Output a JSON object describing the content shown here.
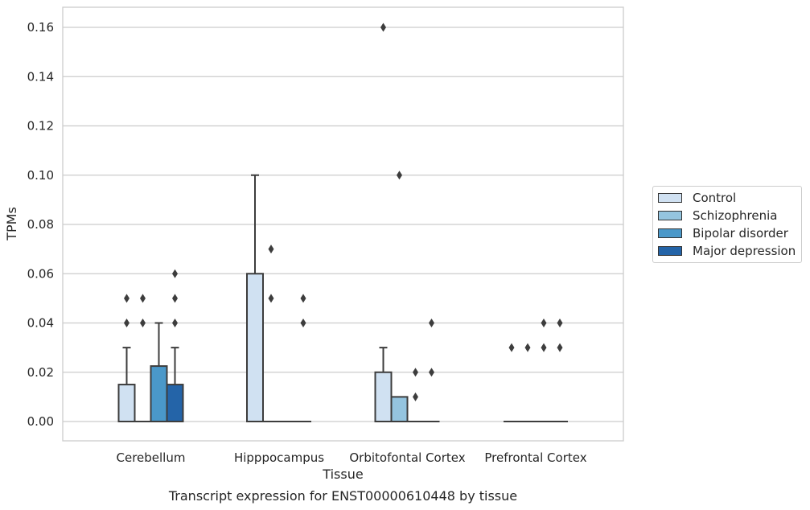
{
  "chart_data": {
    "type": "box",
    "title": "Transcript expression for ENST00000610448 by tissue",
    "xlabel": "Tissue",
    "ylabel": "TPMs",
    "ylim": [
      -0.008,
      0.168
    ],
    "yticks": [
      "0.00",
      "0.02",
      "0.04",
      "0.06",
      "0.08",
      "0.10",
      "0.12",
      "0.14",
      "0.16"
    ],
    "categories": [
      "Cerebellum",
      "Hipppocampus",
      "Orbitofontal Cortex",
      "Prefrontal Cortex"
    ],
    "grid": true,
    "legend_position": "right",
    "series": [
      {
        "name": "Control",
        "color": "#d0e1f2",
        "boxes": [
          {
            "q1": 0,
            "median": 0,
            "q3": 0.015,
            "whisker_low": 0,
            "whisker_high": 0.03,
            "outliers": [
              0.04,
              0.05
            ]
          },
          {
            "q1": 0,
            "median": 0,
            "q3": 0.06,
            "whisker_low": 0,
            "whisker_high": 0.1,
            "outliers": []
          },
          {
            "q1": 0,
            "median": 0,
            "q3": 0.02,
            "whisker_low": 0,
            "whisker_high": 0.03,
            "outliers": [
              0.16
            ]
          },
          {
            "q1": 0,
            "median": 0,
            "q3": 0,
            "whisker_low": 0,
            "whisker_high": 0,
            "outliers": [
              0.03
            ]
          }
        ]
      },
      {
        "name": "Schizophrenia",
        "color": "#94c4df",
        "boxes": [
          {
            "q1": 0,
            "median": 0,
            "q3": 0,
            "whisker_low": 0,
            "whisker_high": 0,
            "outliers": [
              0.04,
              0.05
            ]
          },
          {
            "q1": 0,
            "median": 0,
            "q3": 0,
            "whisker_low": 0,
            "whisker_high": 0,
            "outliers": [
              0.05,
              0.07
            ]
          },
          {
            "q1": 0,
            "median": 0,
            "q3": 0.01,
            "whisker_low": 0,
            "whisker_high": 0.01,
            "outliers": [
              0.1
            ]
          },
          {
            "q1": 0,
            "median": 0,
            "q3": 0,
            "whisker_low": 0,
            "whisker_high": 0,
            "outliers": [
              0.03
            ]
          }
        ]
      },
      {
        "name": "Bipolar disorder",
        "color": "#4a98c9",
        "boxes": [
          {
            "q1": 0,
            "median": 0,
            "q3": 0.0225,
            "whisker_low": 0,
            "whisker_high": 0.04,
            "outliers": []
          },
          {
            "q1": 0,
            "median": 0,
            "q3": 0,
            "whisker_low": 0,
            "whisker_high": 0,
            "outliers": []
          },
          {
            "q1": 0,
            "median": 0,
            "q3": 0,
            "whisker_low": 0,
            "whisker_high": 0,
            "outliers": [
              0.01,
              0.02
            ]
          },
          {
            "q1": 0,
            "median": 0,
            "q3": 0,
            "whisker_low": 0,
            "whisker_high": 0,
            "outliers": [
              0.03,
              0.04
            ]
          }
        ]
      },
      {
        "name": "Major depression",
        "color": "#2464a8",
        "boxes": [
          {
            "q1": 0,
            "median": 0,
            "q3": 0.015,
            "whisker_low": 0,
            "whisker_high": 0.03,
            "outliers": [
              0.04,
              0.05,
              0.06
            ]
          },
          {
            "q1": 0,
            "median": 0,
            "q3": 0,
            "whisker_low": 0,
            "whisker_high": 0,
            "outliers": [
              0.04,
              0.05
            ]
          },
          {
            "q1": 0,
            "median": 0,
            "q3": 0,
            "whisker_low": 0,
            "whisker_high": 0,
            "outliers": [
              0.02,
              0.04
            ]
          },
          {
            "q1": 0,
            "median": 0,
            "q3": 0,
            "whisker_low": 0,
            "whisker_high": 0,
            "outliers": [
              0.03,
              0.04
            ]
          }
        ]
      }
    ]
  },
  "legend": {
    "items": [
      {
        "label": "Control",
        "color": "#d0e1f2"
      },
      {
        "label": "Schizophrenia",
        "color": "#94c4df"
      },
      {
        "label": "Bipolar disorder",
        "color": "#4a98c9"
      },
      {
        "label": "Major depression",
        "color": "#2464a8"
      }
    ]
  }
}
